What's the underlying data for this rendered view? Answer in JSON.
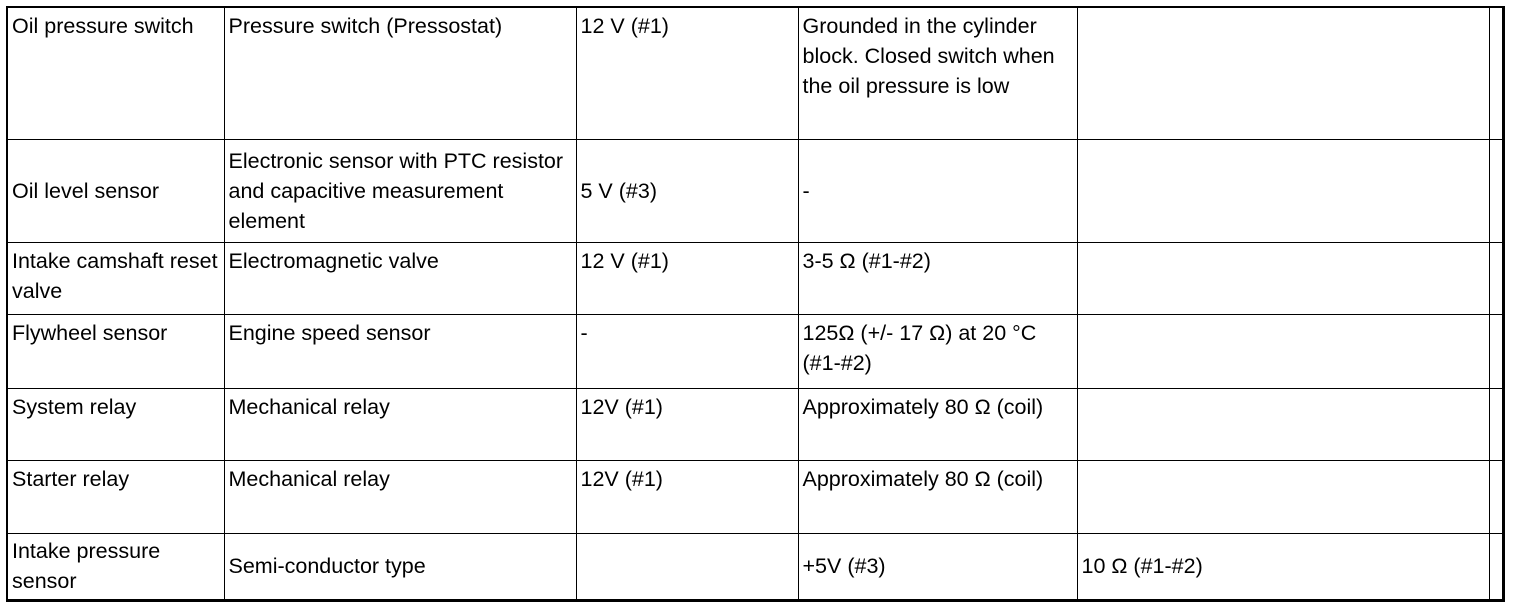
{
  "rows": [
    {
      "component": "Oil pressure switch",
      "type": "Pressure switch (Pressostat)",
      "supply": "12 V (#1)",
      "value": "Grounded in the cylinder block. Closed switch when the oil pressure is low",
      "extra": ""
    },
    {
      "component": "Oil level sensor",
      "type": "Electronic sensor with PTC resistor and capacitive measurement element",
      "supply": "5 V (#3)",
      "value": "-",
      "extra": ""
    },
    {
      "component": "Intake camshaft reset valve",
      "type": "Electromagnetic valve",
      "supply": "12 V (#1)",
      "value": "3-5 Ω (#1-#2)",
      "extra": ""
    },
    {
      "component": "Flywheel sensor",
      "type": "Engine speed sensor",
      "supply": "-",
      "value": "125Ω (+/- 17 Ω) at 20 °C (#1-#2)",
      "extra": ""
    },
    {
      "component": "System relay",
      "type": "Mechanical relay",
      "supply": "12V (#1)",
      "value": "Approximately 80 Ω (coil)",
      "extra": ""
    },
    {
      "component": "Starter relay",
      "type": "Mechanical relay",
      "supply": "12V (#1)",
      "value": "Approximately 80 Ω (coil)",
      "extra": ""
    },
    {
      "component": "Intake pressure sensor",
      "type": "Semi-conductor type",
      "supply": "",
      "value": "+5V (#3)",
      "extra": "10 Ω (#1-#2)"
    }
  ]
}
